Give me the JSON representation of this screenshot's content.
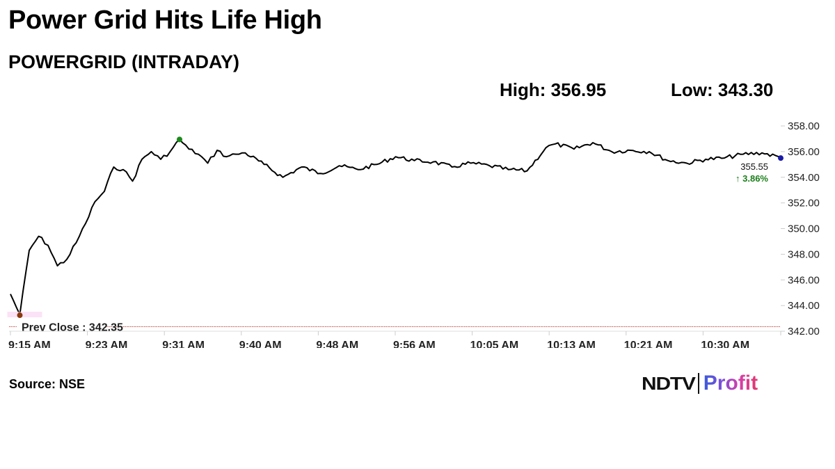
{
  "header": {
    "title": "Power Grid Hits Life High",
    "subtitle": "POWERGRID (INTRADAY)",
    "high_label": "High: 356.95",
    "low_label": "Low: 343.30"
  },
  "footer": {
    "source": "Source: NSE",
    "logo_left": "NDTV",
    "logo_right": "Profit"
  },
  "colors": {
    "line": "#000000",
    "high_marker": "#1a8a1a",
    "low_marker": "#8b3a0f",
    "last_marker": "#1a1aa8",
    "prev_close_line": "#c0504d",
    "change_positive": "#1a7f1a"
  },
  "chart_data": {
    "type": "line",
    "title": "POWERGRID (INTRADAY)",
    "xlabel": "",
    "ylabel": "",
    "ylim": [
      342,
      358
    ],
    "grid": false,
    "legend": "none",
    "y_ticks": [
      "358.00",
      "356.00",
      "354.00",
      "352.00",
      "350.00",
      "348.00",
      "346.00",
      "344.00",
      "342.00"
    ],
    "x_ticks": [
      "9:15 AM",
      "9:23 AM",
      "9:31 AM",
      "9:40 AM",
      "9:48 AM",
      "9:56 AM",
      "10:05 AM",
      "10:13 AM",
      "10:21 AM",
      "10:30 AM"
    ],
    "prev_close": {
      "label": "Prev Close : 342.35",
      "value": 342.35
    },
    "high": 356.95,
    "low": 343.3,
    "last": {
      "value": "355.55",
      "change": "3.86%",
      "direction": "up"
    },
    "series": [
      {
        "name": "POWERGRID",
        "x": [
          "9:15",
          "9:16",
          "9:17",
          "9:18",
          "9:19",
          "9:20",
          "9:21",
          "9:22",
          "9:23",
          "9:24",
          "9:25",
          "9:26",
          "9:27",
          "9:28",
          "9:29",
          "9:30",
          "9:31",
          "9:32",
          "9:33",
          "9:34",
          "9:35",
          "9:36",
          "9:37",
          "9:38",
          "9:39",
          "9:40",
          "9:42",
          "9:44",
          "9:46",
          "9:48",
          "9:50",
          "9:52",
          "9:54",
          "9:56",
          "9:58",
          "10:00",
          "10:02",
          "10:04",
          "10:06",
          "10:08",
          "10:10",
          "10:12",
          "10:13",
          "10:15",
          "10:17",
          "10:19",
          "10:21",
          "10:23",
          "10:25",
          "10:27",
          "10:29",
          "10:31",
          "10:33",
          "10:35",
          "10:37"
        ],
        "values": [
          344.9,
          343.3,
          348.3,
          349.4,
          348.7,
          347.1,
          347.6,
          348.9,
          350.4,
          352.1,
          352.9,
          354.8,
          354.6,
          353.7,
          355.4,
          356.0,
          355.4,
          356.0,
          356.95,
          356.2,
          355.8,
          355.1,
          356.1,
          355.6,
          355.8,
          355.9,
          355.0,
          354.0,
          354.8,
          354.3,
          354.9,
          354.6,
          355.0,
          355.6,
          355.3,
          355.2,
          354.8,
          355.1,
          354.9,
          354.6,
          354.5,
          356.3,
          356.6,
          356.2,
          356.7,
          356.0,
          356.1,
          356.0,
          355.3,
          355.1,
          355.4,
          355.5,
          355.8,
          355.9,
          355.55
        ]
      }
    ]
  }
}
